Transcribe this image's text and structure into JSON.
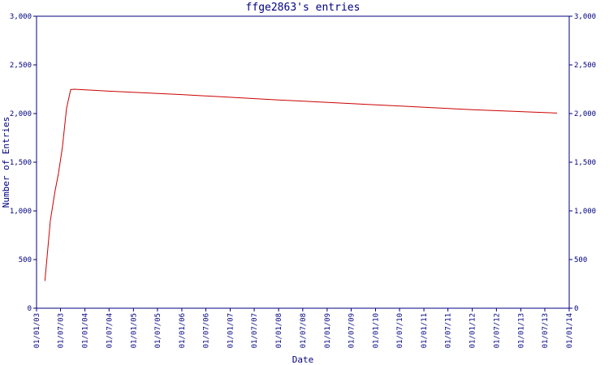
{
  "chart_data": {
    "type": "line",
    "title": "ffge2863's entries",
    "xlabel": "Date",
    "ylabel": "Number of Entries",
    "ylim": [
      0,
      3000
    ],
    "yticks": [
      0,
      500,
      1000,
      1500,
      2000,
      2500,
      3000
    ],
    "ytick_labels": [
      "0",
      "500",
      "1,000",
      "1,500",
      "2,000",
      "2,500",
      "3,000"
    ],
    "xlim": [
      "2003-01-01",
      "2014-01-01"
    ],
    "xticks": [
      "2003-01-01",
      "2003-07-01",
      "2004-01-01",
      "2004-07-01",
      "2005-01-01",
      "2005-07-01",
      "2006-01-01",
      "2006-07-01",
      "2007-01-01",
      "2007-07-01",
      "2008-01-01",
      "2008-07-01",
      "2009-01-01",
      "2009-07-01",
      "2010-01-01",
      "2010-07-01",
      "2011-01-01",
      "2011-07-01",
      "2012-01-01",
      "2012-07-01",
      "2013-01-01",
      "2013-07-01",
      "2014-01-01"
    ],
    "xtick_labels": [
      "01/01/03",
      "01/07/03",
      "01/01/04",
      "01/07/04",
      "01/01/05",
      "01/07/05",
      "01/01/06",
      "01/07/06",
      "01/01/07",
      "01/07/07",
      "01/01/08",
      "01/07/08",
      "01/01/09",
      "01/07/09",
      "01/01/10",
      "01/07/10",
      "01/01/11",
      "01/07/11",
      "01/01/12",
      "01/07/12",
      "01/01/13",
      "01/07/13",
      "01/01/14"
    ],
    "grid": false,
    "right_axis_mirror": true,
    "series": [
      {
        "color": "#cc0000",
        "points": [
          {
            "x": "2003-03-05",
            "y": 280
          },
          {
            "x": "2003-04-15",
            "y": 900
          },
          {
            "x": "2003-05-20",
            "y": 1200
          },
          {
            "x": "2003-06-15",
            "y": 1380
          },
          {
            "x": "2003-07-15",
            "y": 1650
          },
          {
            "x": "2003-08-15",
            "y": 2050
          },
          {
            "x": "2003-09-15",
            "y": 2245
          },
          {
            "x": "2003-10-10",
            "y": 2250
          },
          {
            "x": "2004-07-01",
            "y": 2230
          },
          {
            "x": "2006-01-01",
            "y": 2195
          },
          {
            "x": "2008-01-01",
            "y": 2140
          },
          {
            "x": "2010-01-01",
            "y": 2090
          },
          {
            "x": "2012-01-01",
            "y": 2040
          },
          {
            "x": "2013-10-01",
            "y": 2005
          }
        ]
      }
    ]
  }
}
